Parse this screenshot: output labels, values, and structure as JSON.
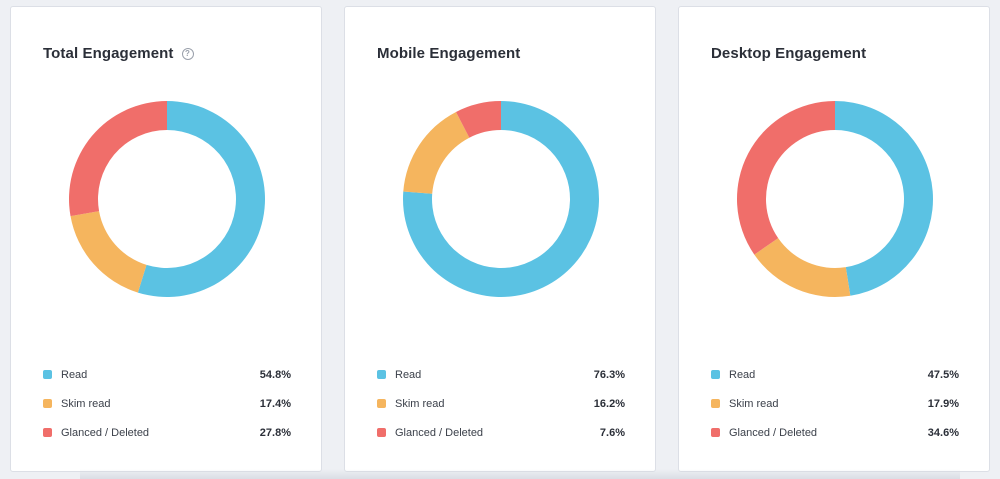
{
  "chart_data": [
    {
      "type": "pie",
      "title": "Total Engagement",
      "has_help_icon": true,
      "categories": [
        "Read",
        "Skim read",
        "Glanced / Deleted"
      ],
      "values": [
        54.8,
        17.4,
        27.8
      ],
      "value_labels": [
        "54.8%",
        "17.4%",
        "27.8%"
      ],
      "colors": [
        "#5bc2e3",
        "#f5b55e",
        "#f06e6a"
      ],
      "legend": "bottom"
    },
    {
      "type": "pie",
      "title": "Mobile Engagement",
      "has_help_icon": false,
      "categories": [
        "Read",
        "Skim read",
        "Glanced / Deleted"
      ],
      "values": [
        76.3,
        16.2,
        7.6
      ],
      "value_labels": [
        "76.3%",
        "16.2%",
        "7.6%"
      ],
      "colors": [
        "#5bc2e3",
        "#f5b55e",
        "#f06e6a"
      ],
      "legend": "bottom"
    },
    {
      "type": "pie",
      "title": "Desktop Engagement",
      "has_help_icon": false,
      "categories": [
        "Read",
        "Skim read",
        "Glanced / Deleted"
      ],
      "values": [
        47.5,
        17.9,
        34.6
      ],
      "value_labels": [
        "47.5%",
        "17.9%",
        "34.6%"
      ],
      "colors": [
        "#5bc2e3",
        "#f5b55e",
        "#f06e6a"
      ],
      "legend": "bottom"
    }
  ],
  "help_icon_glyph": "?"
}
